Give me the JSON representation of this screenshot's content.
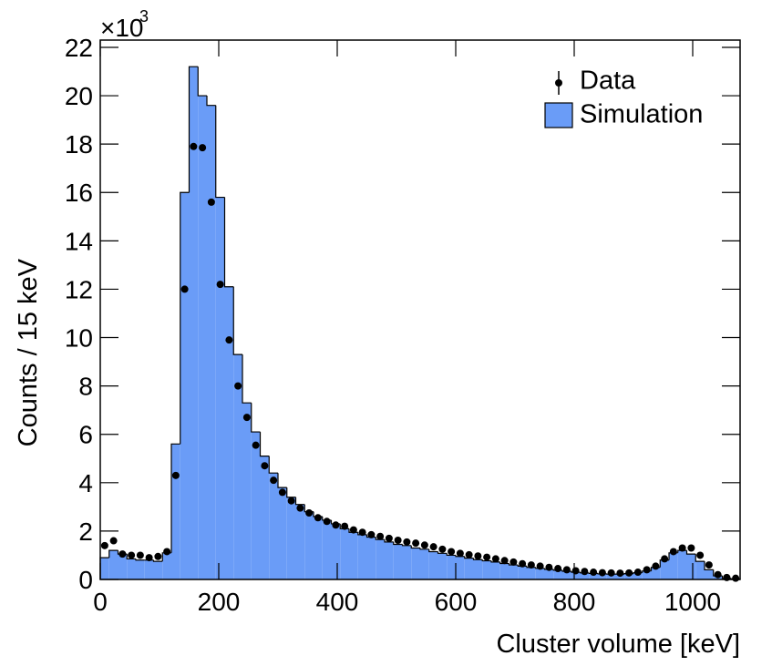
{
  "chart_data": {
    "type": "histogram",
    "x_label": "Cluster volume [keV]",
    "y_label": "Counts / 15 keV",
    "y_multiplier": "×10",
    "y_exponent": "3",
    "bins": [
      0,
      15,
      30,
      45,
      60,
      75,
      90,
      105,
      120,
      135,
      150,
      165,
      180,
      195,
      210,
      225,
      240,
      255,
      270,
      285,
      300,
      315,
      330,
      345,
      360,
      375,
      390,
      405,
      420,
      435,
      450,
      465,
      480,
      495,
      510,
      525,
      540,
      555,
      570,
      585,
      600,
      615,
      630,
      645,
      660,
      675,
      690,
      705,
      720,
      735,
      750,
      765,
      780,
      795,
      810,
      825,
      840,
      855,
      870,
      885,
      900,
      915,
      930,
      945,
      960,
      975,
      990,
      1005,
      1020,
      1035,
      1050,
      1065,
      1080
    ],
    "series": [
      {
        "name": "Simulation",
        "style": "filled-step",
        "color": "#6a9cf7",
        "values": [
          0.9,
          1.2,
          1.05,
          0.85,
          0.8,
          0.8,
          0.75,
          1.1,
          5.6,
          16.0,
          21.2,
          20.0,
          19.6,
          15.8,
          12.1,
          9.3,
          7.3,
          6.1,
          5.1,
          4.4,
          3.8,
          3.4,
          3.1,
          2.8,
          2.6,
          2.45,
          2.3,
          2.1,
          1.95,
          1.85,
          1.75,
          1.65,
          1.55,
          1.45,
          1.4,
          1.3,
          1.25,
          1.15,
          1.08,
          1.0,
          0.95,
          0.88,
          0.82,
          0.77,
          0.72,
          0.66,
          0.6,
          0.55,
          0.5,
          0.46,
          0.42,
          0.38,
          0.34,
          0.3,
          0.27,
          0.25,
          0.23,
          0.22,
          0.22,
          0.24,
          0.28,
          0.35,
          0.5,
          0.8,
          1.1,
          1.2,
          1.05,
          0.75,
          0.4,
          0.15,
          0.05,
          0.02
        ]
      },
      {
        "name": "Data",
        "style": "points",
        "color": "#000000",
        "values": [
          1.4,
          1.6,
          1.05,
          1.0,
          1.0,
          0.9,
          0.95,
          1.15,
          4.3,
          12.0,
          17.9,
          17.85,
          15.6,
          12.2,
          9.9,
          8.0,
          6.7,
          5.55,
          4.7,
          4.1,
          3.6,
          3.25,
          2.95,
          2.75,
          2.55,
          2.4,
          2.25,
          2.2,
          2.05,
          1.95,
          1.85,
          1.78,
          1.7,
          1.62,
          1.55,
          1.5,
          1.42,
          1.35,
          1.25,
          1.15,
          1.08,
          1.02,
          0.97,
          0.92,
          0.85,
          0.78,
          0.72,
          0.65,
          0.6,
          0.55,
          0.5,
          0.45,
          0.4,
          0.36,
          0.33,
          0.3,
          0.28,
          0.27,
          0.26,
          0.27,
          0.3,
          0.4,
          0.55,
          0.85,
          1.15,
          1.3,
          1.3,
          1.0,
          0.6,
          0.2,
          0.08,
          0.05
        ]
      }
    ],
    "xlim": [
      0,
      1080
    ],
    "ylim": [
      0,
      22.3
    ],
    "xticks": [
      0,
      200,
      400,
      600,
      800,
      1000
    ],
    "yticks": [
      0,
      2,
      4,
      6,
      8,
      10,
      12,
      14,
      16,
      18,
      20,
      22
    ],
    "legend": "top-right",
    "grid": false
  }
}
